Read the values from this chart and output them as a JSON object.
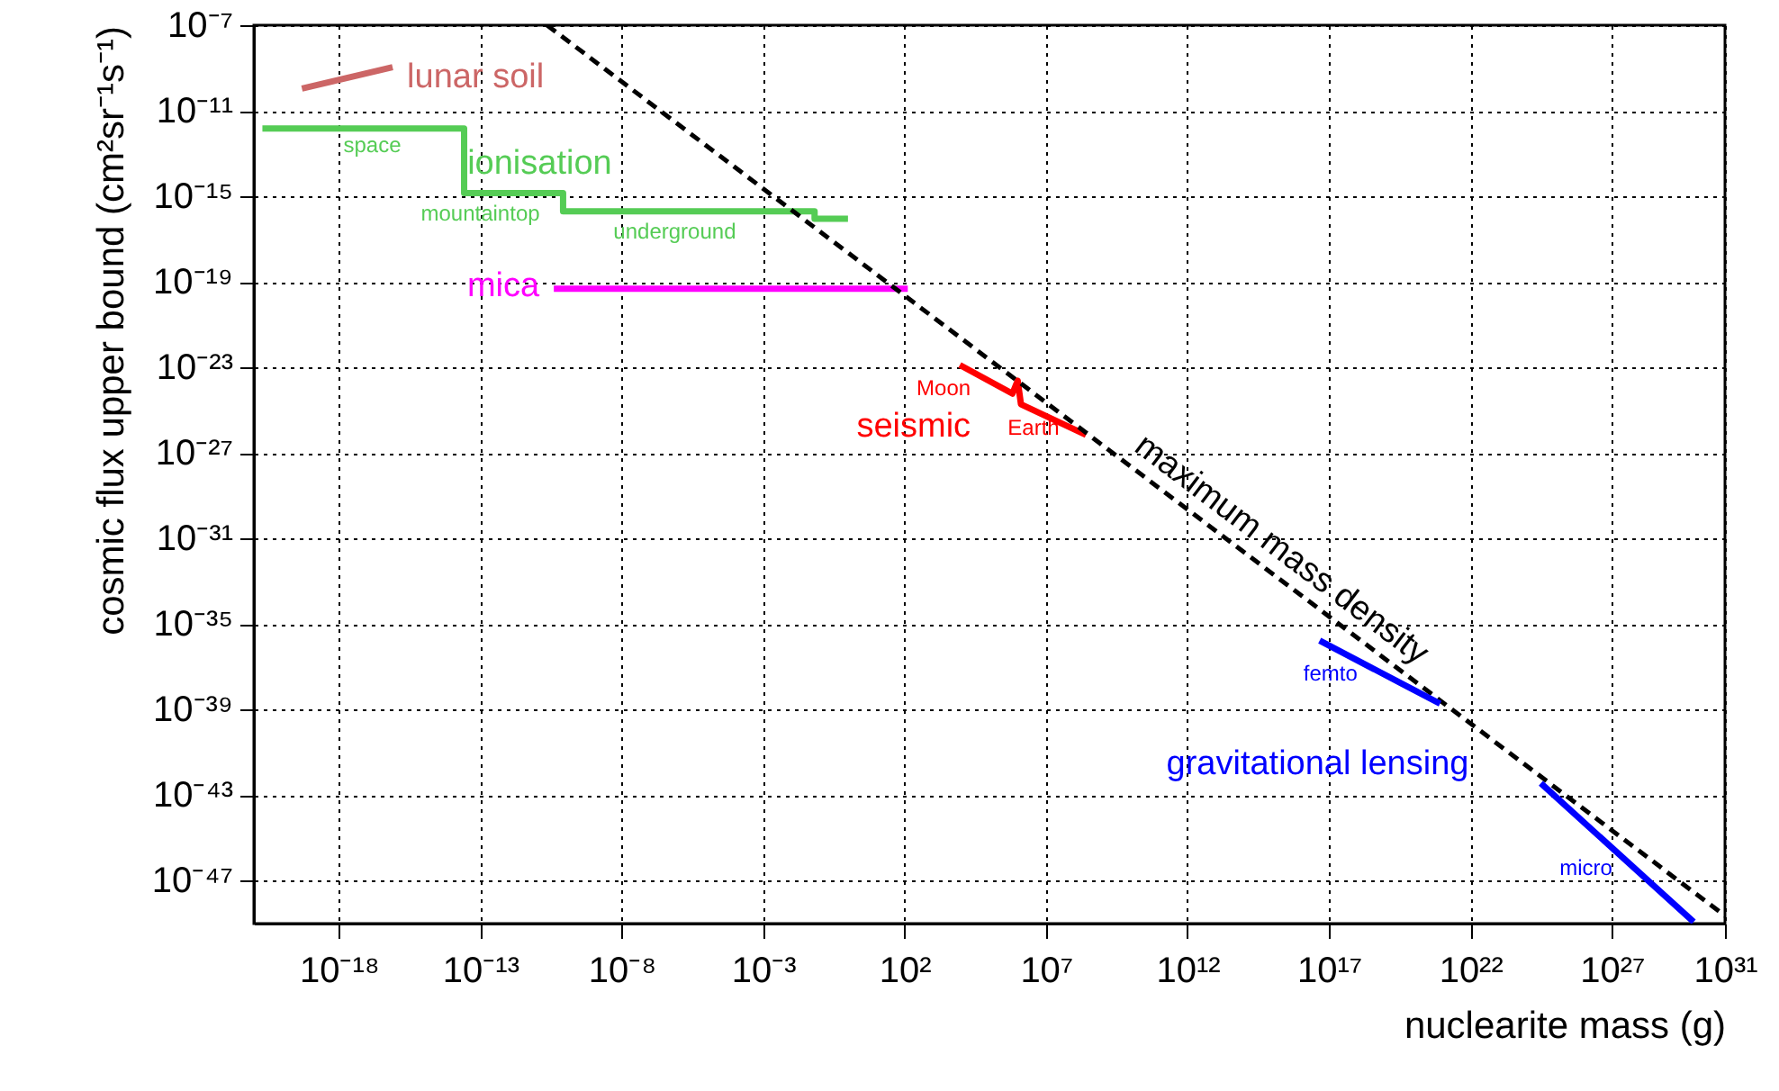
{
  "chart_data": {
    "type": "line",
    "xlabel": "nuclearite mass (g)",
    "ylabel": "cosmic flux upper bound (cm²sr⁻¹s⁻¹)",
    "log": "xy",
    "grid": true,
    "xlim": [
      1e-21,
      1e+31
    ],
    "ylim": [
      1e-49,
      1e-07
    ],
    "xticks": [
      {
        "value": 1e-18,
        "label": "10⁻¹⁸"
      },
      {
        "value": 1e-13,
        "label": "10⁻¹³"
      },
      {
        "value": 1e-08,
        "label": "10⁻⁸"
      },
      {
        "value": 0.001,
        "label": "10⁻³"
      },
      {
        "value": 100.0,
        "label": "10²"
      },
      {
        "value": 10000000.0,
        "label": "10⁷"
      },
      {
        "value": 1000000000000.0,
        "label": "10¹²"
      },
      {
        "value": 1e+17,
        "label": "10¹⁷"
      },
      {
        "value": 1e+22,
        "label": "10²²"
      },
      {
        "value": 1e+27,
        "label": "10²⁷"
      },
      {
        "value": 1e+31,
        "label": "10³¹"
      }
    ],
    "yticks": [
      {
        "value": 1e-07,
        "label": "10⁻⁷"
      },
      {
        "value": 1e-11,
        "label": "10⁻¹¹"
      },
      {
        "value": 1e-15,
        "label": "10⁻¹⁵"
      },
      {
        "value": 1e-19,
        "label": "10⁻¹⁹"
      },
      {
        "value": 1e-23,
        "label": "10⁻²³"
      },
      {
        "value": 1e-27,
        "label": "10⁻²⁷"
      },
      {
        "value": 1e-31,
        "label": "10⁻³¹"
      },
      {
        "value": 1e-35,
        "label": "10⁻³⁵"
      },
      {
        "value": 1e-39,
        "label": "10⁻³⁹"
      },
      {
        "value": 1e-43,
        "label": "10⁻⁴³"
      },
      {
        "value": 1e-47,
        "label": "10⁻⁴⁷"
      }
    ],
    "series": [
      {
        "name": "lunar soil",
        "color": "#cc6666",
        "x": [
          5e-20,
          8e-17
        ],
        "values": [
          1.1e-10,
          1.1e-09
        ]
      },
      {
        "name": "ionisation",
        "color": "#55cc55",
        "x": [
          2e-21,
          2.7e-14,
          2.7e-14,
          8.5e-11,
          8.5e-11,
          0.066,
          0.066,
          1
        ],
        "values": [
          1.5e-12,
          1.5e-12,
          1.4e-15,
          1.4e-15,
          2e-16,
          2e-16,
          9e-17,
          9e-17
        ]
      },
      {
        "name": "mica",
        "color": "#ff00ff",
        "x": [
          4e-11,
          130
        ],
        "values": [
          4.8e-20,
          4.8e-20
        ]
      },
      {
        "name": "seismic",
        "color": "#ff0000",
        "x": [
          9000.0,
          650000.0,
          1000000.0,
          1300000.0,
          260000000.0
        ],
        "values": [
          1.3e-23,
          6e-25,
          2.4e-24,
          1.9e-25,
          7e-27
        ]
      },
      {
        "name": "maximum mass density",
        "color": "#000000",
        "line_style": "dashed",
        "x": [
          2.3e-11,
          1e+31
        ],
        "values": [
          1e-07,
          2.3e-49
        ]
      },
      {
        "name": "gravitational lensing",
        "color": "#0000ff",
        "x": [
          4.7e+16,
          8.5e+20,
          1e+22,
          3.1e+24,
          7.8e+29
        ],
        "values": [
          1.7e-36,
          1.9e-39,
          null,
          3.6e-43,
          1.2e-49
        ]
      }
    ],
    "annotations": [
      "space",
      "mountaintop",
      "underground",
      "Moon",
      "Earth",
      "femto",
      "micro"
    ]
  }
}
